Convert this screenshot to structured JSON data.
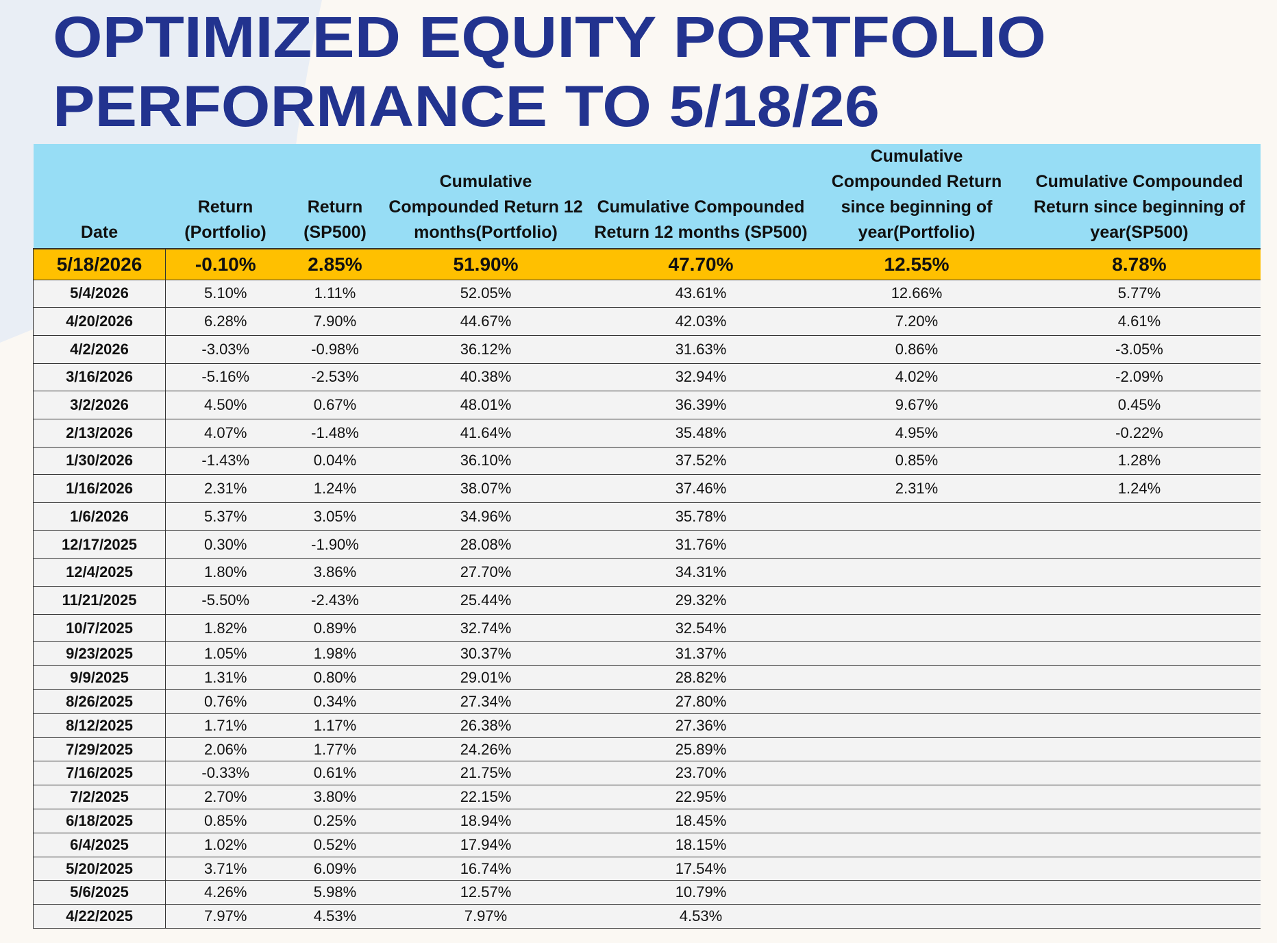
{
  "title_lines": [
    "OPTIMIZED EQUITY PORTFOLIO",
    "PERFORMANCE TO 5/18/26"
  ],
  "table": {
    "headers": [
      "Date",
      "Return (Portfolio)",
      "Return (SP500)",
      "Cumulative Compounded Return 12 months(Portfolio)",
      "Cumulative Compounded Return 12 months (SP500)",
      "Cumulative Compounded Return since beginning of year(Portfolio)",
      "Cumulative Compounded Return since beginning of year(SP500)"
    ],
    "rows": [
      [
        "5/18/2026",
        "-0.10%",
        "2.85%",
        "51.90%",
        "47.70%",
        "12.55%",
        "8.78%"
      ],
      [
        "5/4/2026",
        "5.10%",
        "1.11%",
        "52.05%",
        "43.61%",
        "12.66%",
        "5.77%"
      ],
      [
        "4/20/2026",
        "6.28%",
        "7.90%",
        "44.67%",
        "42.03%",
        "7.20%",
        "4.61%"
      ],
      [
        "4/2/2026",
        "-3.03%",
        "-0.98%",
        "36.12%",
        "31.63%",
        "0.86%",
        "-3.05%"
      ],
      [
        "3/16/2026",
        "-5.16%",
        "-2.53%",
        "40.38%",
        "32.94%",
        "4.02%",
        "-2.09%"
      ],
      [
        "3/2/2026",
        "4.50%",
        "0.67%",
        "48.01%",
        "36.39%",
        "9.67%",
        "0.45%"
      ],
      [
        "2/13/2026",
        "4.07%",
        "-1.48%",
        "41.64%",
        "35.48%",
        "4.95%",
        "-0.22%"
      ],
      [
        "1/30/2026",
        "-1.43%",
        "0.04%",
        "36.10%",
        "37.52%",
        "0.85%",
        "1.28%"
      ],
      [
        "1/16/2026",
        "2.31%",
        "1.24%",
        "38.07%",
        "37.46%",
        "2.31%",
        "1.24%"
      ],
      [
        "1/6/2026",
        "5.37%",
        "3.05%",
        "34.96%",
        "35.78%"
      ],
      [
        "12/17/2025",
        "0.30%",
        "-1.90%",
        "28.08%",
        "31.76%"
      ],
      [
        "12/4/2025",
        "1.80%",
        "3.86%",
        "27.70%",
        "34.31%"
      ],
      [
        "11/21/2025",
        "-5.50%",
        "-2.43%",
        "25.44%",
        "29.32%"
      ],
      [
        "10/7/2025",
        "1.82%",
        "0.89%",
        "32.74%",
        "32.54%"
      ],
      [
        "9/23/2025",
        "1.05%",
        "1.98%",
        "30.37%",
        "31.37%"
      ],
      [
        "9/9/2025",
        "1.31%",
        "0.80%",
        "29.01%",
        "28.82%"
      ],
      [
        "8/26/2025",
        "0.76%",
        "0.34%",
        "27.34%",
        "27.80%"
      ],
      [
        "8/12/2025",
        "1.71%",
        "1.17%",
        "26.38%",
        "27.36%"
      ],
      [
        "7/29/2025",
        "2.06%",
        "1.77%",
        "24.26%",
        "25.89%"
      ],
      [
        "7/16/2025",
        "-0.33%",
        "0.61%",
        "21.75%",
        "23.70%"
      ],
      [
        "7/2/2025",
        "2.70%",
        "3.80%",
        "22.15%",
        "22.95%"
      ],
      [
        "6/18/2025",
        "0.85%",
        "0.25%",
        "18.94%",
        "18.45%"
      ],
      [
        "6/4/2025",
        "1.02%",
        "0.52%",
        "17.94%",
        "18.15%"
      ],
      [
        "5/20/2025",
        "3.71%",
        "6.09%",
        "16.74%",
        "17.54%"
      ],
      [
        "5/6/2025",
        "4.26%",
        "5.98%",
        "12.57%",
        "10.79%"
      ],
      [
        "4/22/2025",
        "7.97%",
        "4.53%",
        "7.97%",
        "4.53%"
      ]
    ]
  }
}
